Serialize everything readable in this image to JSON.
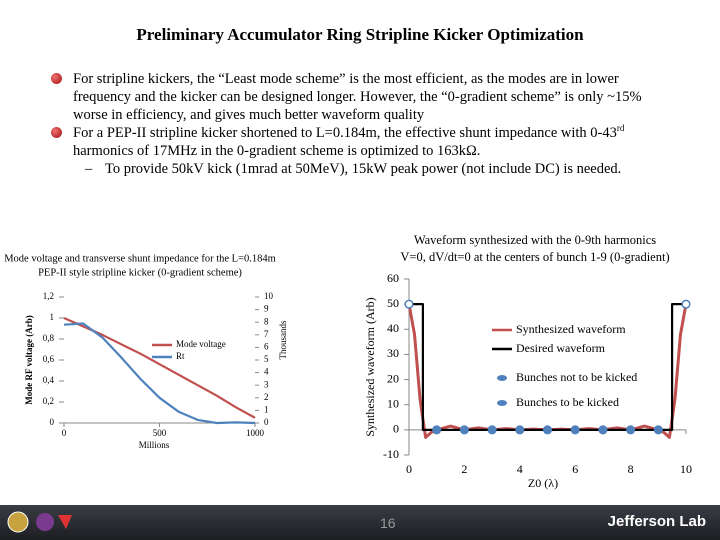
{
  "header": {
    "title": "Preliminary Accumulator Ring Stripline Kicker Optimization"
  },
  "bullets": [
    {
      "text": [
        "For stripline kickers, the “Least mode scheme” is the most efficient, as the modes are in lower frequency and the kicker can be designed longer. However, the “0-gradient scheme” is only ~15% worse in efficiency, and gives much better waveform quality"
      ]
    },
    {
      "text": [
        "For a PEP-II stripline kicker shortened to L=0.184m, the effective shunt impedance with 0-43",
        "rd",
        " harmonics of 17MHz in the 0-gradient scheme is optimized to 163kΩ."
      ],
      "sub": [
        "To provide 50kV kick (1mrad at 50MeV), 15kW peak power (not include DC) is needed."
      ]
    }
  ],
  "chart_data": [
    {
      "type": "line",
      "title": [
        "Mode voltage and transverse shunt impedance for the L=0.184m",
        "PEP-II style stripline kicker (0-gradient scheme)"
      ],
      "ylabel": "Mode RF voltage (Arb)",
      "y2label": "Thousands",
      "xlabel": "Millions",
      "x": [
        0,
        100,
        200,
        300,
        400,
        500,
        600,
        700,
        800,
        900,
        1000
      ],
      "xlim": [
        0,
        1000
      ],
      "xticks": [
        0,
        500,
        1000
      ],
      "ylim": [
        0,
        1.2
      ],
      "yticks": [
        0,
        {
          "value": 0.2,
          "label": "0,2"
        },
        {
          "value": 0.4,
          "label": "0,4"
        },
        {
          "value": 0.6,
          "label": "0,6"
        },
        {
          "value": 0.8,
          "label": "0,8"
        },
        1,
        {
          "value": 1.2,
          "label": "1,2"
        }
      ],
      "y2lim": [
        0,
        10
      ],
      "y2ticks": [
        0,
        1,
        2,
        3,
        4,
        5,
        6,
        7,
        8,
        9,
        10
      ],
      "series": [
        {
          "name": "Mode voltage",
          "color": "#c0504d",
          "mode": "lines",
          "values": [
            1,
            0.92,
            0.84,
            0.75,
            0.66,
            0.56,
            0.46,
            0.36,
            0.26,
            0.15,
            0.05
          ]
        },
        {
          "name": "Rt",
          "color": "#4f81bd",
          "mode": "lines",
          "axis": "y2",
          "values": [
            7.8,
            7.9,
            6.8,
            5.2,
            3.5,
            2.0,
            0.9,
            0.25,
            0,
            0.05,
            0
          ]
        }
      ]
    },
    {
      "type": "line",
      "title": [
        "Waveform synthesized with the 0-9th harmonics",
        "V=0, dV/dt=0 at the centers of bunch 1-9 (0-gradient)"
      ],
      "ylabel": "Synthesized waveform (Arb)",
      "xlabel": "Z0 (λ)",
      "xlim": [
        0,
        10
      ],
      "xticks": [
        0,
        2,
        4,
        6,
        8,
        10
      ],
      "ylim": [
        -10,
        60
      ],
      "yticks": [
        -10,
        0,
        10,
        20,
        30,
        40,
        50,
        60
      ],
      "series": [
        {
          "name": "Synthesized waveform",
          "color": "#c0504d",
          "mode": "lines",
          "x": [
            0,
            0.2,
            0.4,
            0.6,
            0.8,
            1,
            1.5,
            2,
            2.5,
            3,
            3.5,
            4,
            4.5,
            5,
            5.5,
            6,
            6.5,
            7,
            7.5,
            8,
            8.5,
            9,
            9.2,
            9.4,
            9.6,
            9.8,
            10
          ],
          "values": [
            50,
            38,
            12,
            -3,
            -1,
            0,
            1.5,
            0,
            0.8,
            0,
            0.5,
            0,
            0.3,
            0,
            0.3,
            0,
            0.5,
            0,
            0.8,
            0,
            1.5,
            0,
            -1,
            -3,
            12,
            38,
            50
          ]
        },
        {
          "name": "Desired waveform",
          "color": "#000000",
          "mode": "lines",
          "x": [
            0,
            0.5,
            0.5,
            9.5,
            9.5,
            10
          ],
          "values": [
            50,
            50,
            0,
            0,
            50,
            50
          ]
        },
        {
          "name": "Bunches not to be kicked",
          "color": "#4f81bd",
          "mode": "markers",
          "x": [
            1,
            2,
            3,
            4,
            5,
            6,
            7,
            8,
            9
          ],
          "values": [
            0,
            0,
            0,
            0,
            0,
            0,
            0,
            0,
            0
          ]
        },
        {
          "name": "Bunches to be kicked",
          "color": "#4f81bd",
          "marker_fill": "#ffffff",
          "mode": "markers",
          "x": [
            0,
            10
          ],
          "values": [
            50,
            50
          ]
        }
      ]
    }
  ],
  "footer": {
    "page_number": "16",
    "logo": "Jefferson Lab"
  }
}
